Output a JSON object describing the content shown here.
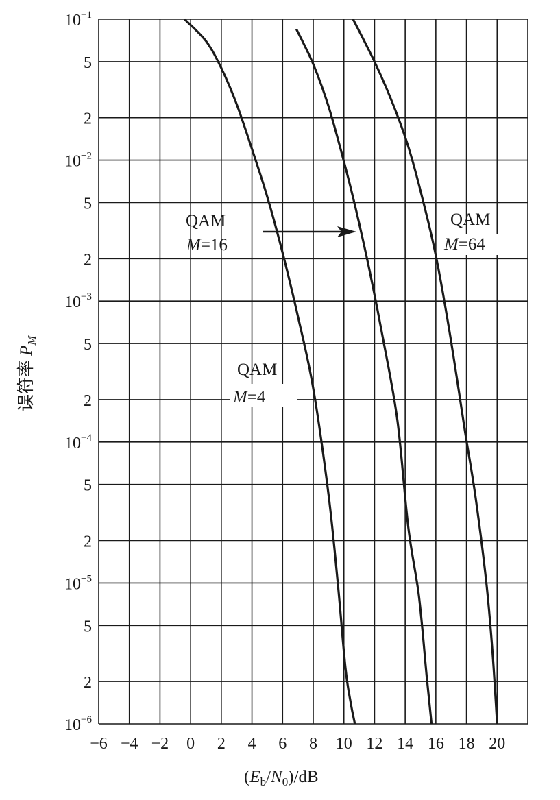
{
  "chart_data": {
    "type": "line",
    "xlabel": "(E_b/N_0)/dB",
    "ylabel": "误符率 P_M",
    "xlim": [
      -6,
      22
    ],
    "ylim": [
      1e-06,
      0.1
    ],
    "y_scale": "log",
    "x_tick_labels": [
      "−6",
      "−4",
      "−2",
      "0",
      "2",
      "4",
      "6",
      "8",
      "10",
      "12",
      "14",
      "16",
      "18",
      "20"
    ],
    "y_tick_labels": [
      {
        "mant": "10",
        "exp": "−1"
      },
      {
        "mant": "5",
        "exp": ""
      },
      {
        "mant": "2",
        "exp": ""
      },
      {
        "mant": "10",
        "exp": "−2"
      },
      {
        "mant": "5",
        "exp": ""
      },
      {
        "mant": "2",
        "exp": ""
      },
      {
        "mant": "10",
        "exp": "−3"
      },
      {
        "mant": "5",
        "exp": ""
      },
      {
        "mant": "2",
        "exp": ""
      },
      {
        "mant": "10",
        "exp": "−4"
      },
      {
        "mant": "5",
        "exp": ""
      },
      {
        "mant": "2",
        "exp": ""
      },
      {
        "mant": "10",
        "exp": "−5"
      },
      {
        "mant": "5",
        "exp": ""
      },
      {
        "mant": "2",
        "exp": ""
      },
      {
        "mant": "10",
        "exp": "−6"
      }
    ],
    "grid": true,
    "series": [
      {
        "name": "QAM M=4",
        "x": [
          -0.4,
          1.0,
          2.0,
          3.0,
          4.0,
          5.0,
          6.0,
          7.0,
          8.0,
          9.0,
          9.6,
          10.1,
          10.45,
          10.72
        ],
        "y": [
          0.1,
          0.07,
          0.045,
          0.025,
          0.012,
          0.0055,
          0.0022,
          0.00078,
          0.00024,
          4.2e-05,
          1e-05,
          2.5e-06,
          1.4e-06,
          1e-06
        ]
      },
      {
        "name": "QAM M=16",
        "x": [
          6.9,
          8.0,
          9.0,
          10.0,
          10.8,
          11.7,
          12.6,
          13.5,
          14.2,
          14.9,
          15.4,
          15.72
        ],
        "y": [
          0.085,
          0.048,
          0.024,
          0.0098,
          0.0044,
          0.0016,
          0.00051,
          0.00014,
          2.5e-05,
          8e-06,
          2.2e-06,
          1e-06
        ]
      },
      {
        "name": "QAM M=64",
        "x": [
          10.6,
          12.0,
          13.2,
          14.2,
          15.1,
          16.0,
          16.9,
          17.9,
          18.6,
          19.3,
          19.7,
          20.0
        ],
        "y": [
          0.1,
          0.05,
          0.025,
          0.0125,
          0.0055,
          0.0021,
          0.0006,
          0.00012,
          4e-05,
          1e-05,
          3.2e-06,
          1e-06
        ]
      }
    ],
    "annotations": [
      {
        "line1": "QAM",
        "m_label": "M",
        "m_value": "=16",
        "arrow": true
      },
      {
        "line1": "QAM",
        "m_label": "M",
        "m_value": "=64"
      },
      {
        "line1": "QAM",
        "m_label": "M",
        "m_value": "=4"
      }
    ],
    "axis_label": {
      "x_open": "(",
      "x_e": "E",
      "x_e_sub": "b",
      "x_mid": "/",
      "x_n": "N",
      "x_n_sub": "0",
      "x_close": ")/dB",
      "y_text": "误符率",
      "y_p": "P",
      "y_p_sub": "M"
    }
  }
}
